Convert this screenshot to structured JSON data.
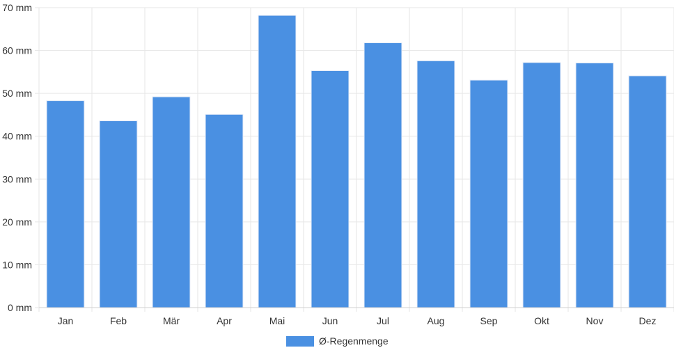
{
  "chart_data": {
    "type": "bar",
    "categories": [
      "Jan",
      "Feb",
      "Mär",
      "Apr",
      "Mai",
      "Jun",
      "Jul",
      "Aug",
      "Sep",
      "Okt",
      "Nov",
      "Dez"
    ],
    "series": [
      {
        "name": "Ø-Regenmenge",
        "values": [
          48.3,
          43.6,
          49.2,
          45.1,
          68.2,
          55.3,
          61.8,
          57.6,
          53.1,
          57.2,
          57.1,
          54.1
        ],
        "color": "#4a90e2"
      }
    ],
    "yticks": [
      0,
      10,
      20,
      30,
      40,
      50,
      60,
      70
    ],
    "y_unit": "mm",
    "ylim": [
      0,
      70
    ],
    "grid": true,
    "legend": "bottom"
  }
}
